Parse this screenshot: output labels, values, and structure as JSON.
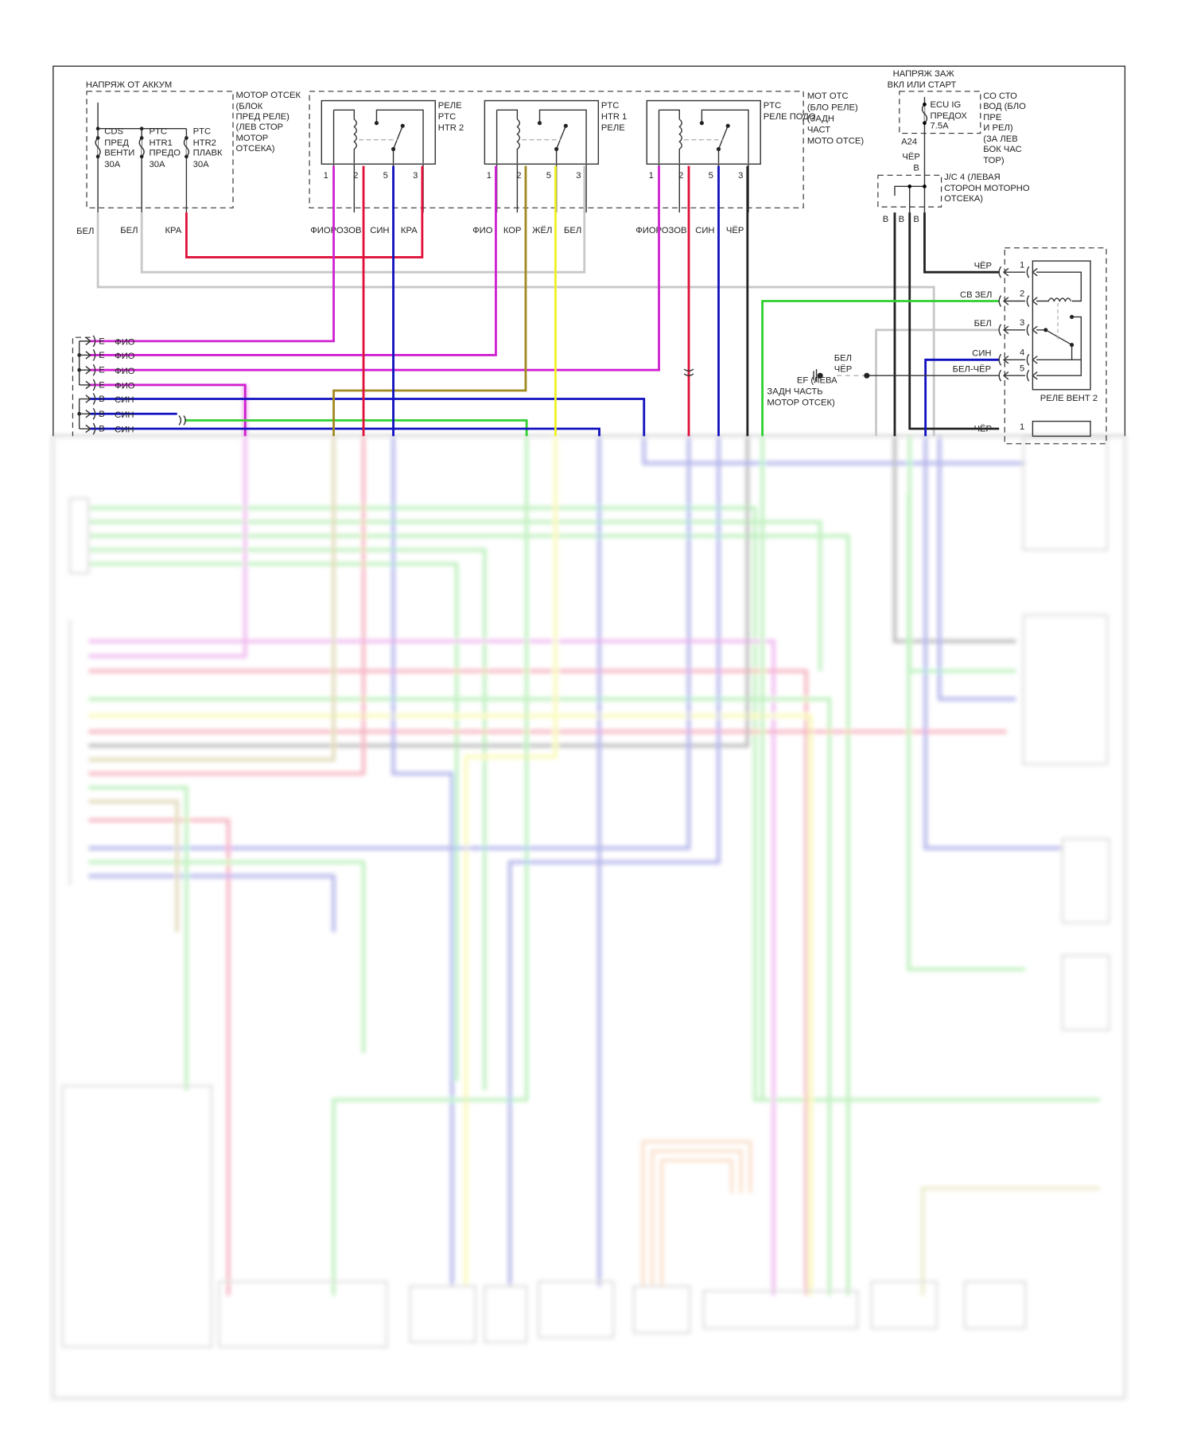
{
  "battery_title": "НАПРЯЖ ОТ АККУМ",
  "fuse_block": {
    "label": [
      "МОТОР ОТСЕК",
      "(БЛОК",
      "ПРЕД РЕЛЕ)",
      "(ЛЕВ СТОР",
      "МОТОР",
      "ОТСЕКА)"
    ],
    "fuses": [
      {
        "lines": [
          "CDS",
          "ПРЕД",
          "ВЕНТИ",
          "30A"
        ]
      },
      {
        "lines": [
          "PTC",
          "HTR1",
          "ПРЕДО",
          "30A"
        ]
      },
      {
        "lines": [
          "PTC",
          "HTR2",
          "ПЛАВК",
          "30A"
        ]
      }
    ],
    "wires": [
      "БЕЛ",
      "БЕЛ",
      "КРА"
    ]
  },
  "relay_block_label": [
    "МОТ ОТС",
    "(БЛО РЕЛЕ)",
    "(ЗАДН",
    "ЧАСТ",
    "МОТО ОТСЕ)"
  ],
  "relays": [
    {
      "name": [
        "РЕЛЕ",
        "PTC",
        "HTR 2"
      ],
      "pins": [
        "1",
        "2",
        "5",
        "3"
      ],
      "wires": [
        "ФИОРОЗОВ",
        "СИН",
        "КРА"
      ]
    },
    {
      "name": [
        "PTC",
        "HTR 1",
        "РЕЛЕ"
      ],
      "pins": [
        "1",
        "2",
        "5",
        "3"
      ],
      "wires": [
        "ФИО",
        "КОР",
        "ЖЁЛ",
        "БЕЛ"
      ]
    },
    {
      "name": [
        "PTC",
        "РЕЛЕ ПОДО"
      ],
      "pins": [
        "1",
        "2",
        "5",
        "3"
      ],
      "wires": [
        "ФИОРОЗОВ",
        "СИН",
        "ЧЁР"
      ]
    }
  ],
  "ignition": {
    "title": [
      "НАПРЯЖ ЗАЖ",
      "ВКЛ ИЛИ СТАРТ"
    ],
    "fuse": [
      "ECU IG",
      "ПРЕДОХ",
      "7.5A"
    ],
    "box_label": [
      "СО СТО",
      "ВОД (БЛО",
      "ПРЕ",
      "И РЕЛ)",
      "(ЗА ЛЕВ",
      "БОК ЧАС",
      "ТОР)"
    ],
    "connector": "A24",
    "wire": "ЧЁР",
    "pin": "B"
  },
  "jc4": {
    "label": [
      "J/C 4 (ЛЕВАЯ",
      "СТОРОН МОТОРНО",
      "ОТСЕКА)"
    ],
    "pins": [
      "B",
      "B",
      "B"
    ]
  },
  "left_connector": [
    {
      "pin": "E",
      "wire": "ФИО"
    },
    {
      "pin": "E",
      "wire": "ФИО"
    },
    {
      "pin": "E",
      "wire": "ФИО"
    },
    {
      "pin": "E",
      "wire": "ФИО"
    },
    {
      "pin": "B",
      "wire": "СИН"
    },
    {
      "pin": "B",
      "wire": "СИН"
    },
    {
      "pin": "B",
      "wire": "СИН"
    }
  ],
  "fan_relay_2": {
    "name": "РЕЛЕ ВЕНТ 2",
    "pins": [
      {
        "num": "1",
        "wire": "ЧЁР"
      },
      {
        "num": "2",
        "wire": "СВ ЗЕЛ"
      },
      {
        "num": "3",
        "wire": "БЕЛ"
      },
      {
        "num": "4",
        "wire": "СИН"
      },
      {
        "num": "5",
        "wire": "БЕЛ-ЧЁР"
      }
    ]
  },
  "ground": {
    "wires": [
      "БЕЛ",
      "ЧЁР"
    ],
    "label": [
      "EF (ЛЕВА",
      "ЗАДН ЧАСТЬ",
      "МОТОР ОТСЕК)"
    ]
  },
  "next_relay": {
    "num": "1",
    "wire": "ЧЁР"
  },
  "wire_colors": {
    "white": "#c8c8c8",
    "red": "#e0103a",
    "magenta": "#d020d0",
    "blue": "#1010c0",
    "olive": "#a08a20",
    "yellow": "#f0f020",
    "black": "#222222",
    "green": "#30d030"
  }
}
